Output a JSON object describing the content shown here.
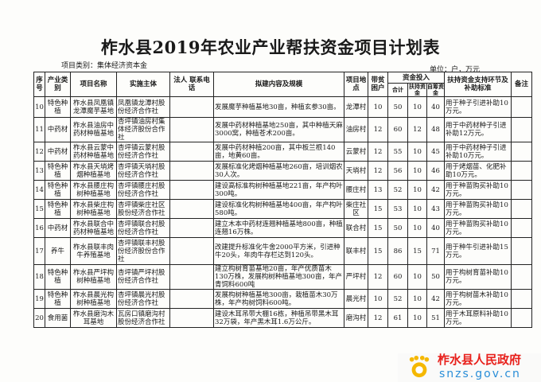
{
  "title": "柞水县2019年农业产业帮扶资金项目计划表",
  "category": "项目类别：集体经济资本金",
  "unit": "单位：户，万元",
  "headers": {
    "no": "序号",
    "industry": "产业类别",
    "name": "项目名称",
    "entity": "实施主体",
    "contact": "法人 联系电话",
    "content": "拟建内容及规模",
    "location": "项目地点",
    "poor": "带贫困户",
    "funds": "资金投入",
    "total": "合计",
    "support": "扶持资金",
    "self": "自筹资金",
    "standard": "扶持资金支持环节及补助标准",
    "remark": "备注"
  },
  "rows": [
    {
      "no": "10",
      "industry": "特色种植",
      "name": "柞水县凤凰镇龙潭魔芋基地",
      "entity": "凤凰镇龙潭村股份经济合作社",
      "contact": "",
      "content": "发展魔芋种植基地30亩，种植玄参30亩。",
      "location": "龙潭村",
      "poor": "10",
      "total": "50",
      "support": "10",
      "self": "40",
      "standard": "用于种子引进补助10万元。",
      "remark": ""
    },
    {
      "no": "11",
      "industry": "中药材",
      "name": "柞水县油房中药材种植基地",
      "entity": "杏坪镇油房村集体经济股份合作社",
      "contact": "",
      "content": "发展中药材种植基地250亩，其中种植天麻3000窝，种植苍术200亩。",
      "location": "油房村",
      "poor": "12",
      "total": "60",
      "support": "12",
      "self": "48",
      "standard": "用于中药材种子引进补助12万元。",
      "remark": ""
    },
    {
      "no": "12",
      "industry": "中药材",
      "name": "柞水县云蒙中药材种植基地",
      "entity": "杏坪镇云蒙村股份经济合作社",
      "contact": "",
      "content": "发展中药材种植200亩，其中板兰根140亩，地黄60亩。",
      "location": "云蒙村",
      "poor": "12",
      "total": "55",
      "support": "10",
      "self": "45",
      "standard": "用于中药材种子引进补助10万元。",
      "remark": ""
    },
    {
      "no": "13",
      "industry": "特色种植",
      "name": "柞水县天埫烤烟种植基地",
      "entity": "杏坪镇天埫村股份经济合作社",
      "contact": "",
      "content": "发展标准化烤烟种植基地260亩，培训烟农30人次。",
      "location": "天埫村",
      "poor": "12",
      "total": "56",
      "support": "10",
      "self": "46",
      "standard": "用于烤烟苗、化肥补助10万元。",
      "remark": ""
    },
    {
      "no": "14",
      "industry": "特色种植",
      "name": "柞水县腰庄构树种植基地",
      "entity": "杏坪镇腰庄村股份经济合作社",
      "contact": "",
      "content": "建设高标准构树种植基地221亩，年产构叶300吨。",
      "location": "腰庄村",
      "poor": "13",
      "total": "52",
      "support": "10",
      "self": "42",
      "standard": "用于种苗购买补助10万元。",
      "remark": ""
    },
    {
      "no": "15",
      "industry": "特色种植",
      "name": "柞水县柴庄构树种植基地",
      "entity": "杏坪镇柴庄社区股份经济合作社",
      "contact": "",
      "content": "建设标准化构树种植基地400亩，年产构叶580吨。",
      "location": "柴庄社区",
      "poor": "15",
      "total": "53",
      "support": "10",
      "self": "43",
      "standard": "用于种苗购买补助10万元。",
      "remark": ""
    },
    {
      "no": "16",
      "industry": "中药材",
      "name": "柞水县联合中药材种植基地",
      "entity": "杏坪镇联合村股份经济合作社",
      "contact": "",
      "content": "建立木本中药材连翘种植基地800亩，种植连翘16万株。",
      "location": "联合村",
      "poor": "15",
      "total": "50",
      "support": "10",
      "self": "40",
      "standard": "用于种苗购买补助10万元。",
      "remark": ""
    },
    {
      "no": "17",
      "industry": "养牛",
      "name": "柞水县联丰肉牛养殖基地",
      "entity": "杏坪镇联丰村股份经济股份合作社",
      "contact": "",
      "content": "改建提升标准化牛舍2000平方米，引进种牛20头，年肉牛存栏达到120头。",
      "location": "联丰村",
      "poor": "15",
      "total": "86",
      "support": "15",
      "self": "71",
      "standard": "用于种牛引进补助15万元。",
      "remark": ""
    },
    {
      "no": "18",
      "industry": "特色种植",
      "name": "柞水县严坪构树种植基地",
      "entity": "杏坪镇严坪村股份经济合作社",
      "contact": "",
      "content": "建立构树育苗基地20亩，年产优质苗木130万株，发展构树种植基地300亩，年产青饲料600吨",
      "location": "严坪村",
      "poor": "12",
      "total": "60",
      "support": "10",
      "self": "50",
      "standard": "用于构树育苗补助10万元。",
      "remark": ""
    },
    {
      "no": "19",
      "industry": "特色种植",
      "name": "柞水县晨光构树种植基地",
      "entity": "杏坪镇晨光村股份经济合作社",
      "contact": "",
      "content": "发展构树种植基地300亩，栽植苗木30万株，年产构树饲料600吨。",
      "location": "晨光村",
      "poor": "10",
      "total": "52",
      "support": "10",
      "self": "42",
      "standard": "用于构树苗木补助10万元。",
      "remark": ""
    },
    {
      "no": "20",
      "industry": "食用菌",
      "name": "柞水县磨沟木耳基地",
      "entity": "瓦房口镇磨沟村股份经济合作社",
      "contact": "",
      "content": "建设木耳吊带大棚16栋，种植吊带黑木耳32万袋，年产黑木耳1.6万公斤。",
      "location": "磨沟村",
      "poor": "12",
      "total": "61",
      "support": "10",
      "self": "51",
      "standard": "用于木耳原料补助10万元。",
      "remark": ""
    }
  ],
  "watermark": {
    "name": "柞水县人民政府",
    "url": "snzs.gov.cn",
    "name_color": "#e8211c",
    "url_color": "#2a8ed8",
    "logo_color": "#f5b800"
  }
}
